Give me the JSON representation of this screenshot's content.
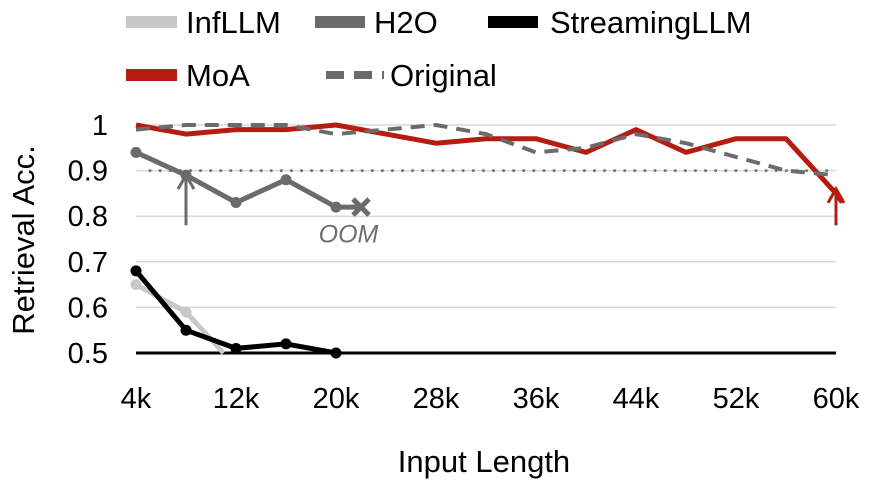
{
  "chart_data": {
    "type": "line",
    "xlabel": "Input Length",
    "ylabel": "Retrieval Acc.",
    "x_tick_labels": [
      "4k",
      "12k",
      "20k",
      "28k",
      "36k",
      "44k",
      "52k",
      "60k"
    ],
    "x_tick_values": [
      4,
      12,
      20,
      28,
      36,
      44,
      52,
      60
    ],
    "y_tick_labels": [
      "0.5",
      "0.6",
      "0.7",
      "0.8",
      "0.9",
      "1"
    ],
    "y_tick_values": [
      0.5,
      0.6,
      0.7,
      0.8,
      0.9,
      1.0
    ],
    "xlim": [
      4,
      60
    ],
    "ylim": [
      0.5,
      1.0
    ],
    "grid": "horizontal",
    "legend_position": "top",
    "reference_line": {
      "y": 0.9,
      "style": "dotted"
    },
    "series": [
      {
        "name": "InfLLM",
        "color": "#c8c8c8",
        "style": "solid",
        "markers": true,
        "x": [
          4,
          8,
          11
        ],
        "y": [
          0.65,
          0.59,
          0.5
        ]
      },
      {
        "name": "H2O",
        "color": "#6b6b6b",
        "style": "solid",
        "markers": true,
        "x": [
          4,
          8,
          12,
          16,
          20,
          22
        ],
        "y": [
          0.94,
          0.89,
          0.83,
          0.88,
          0.82,
          0.82
        ]
      },
      {
        "name": "StreamingLLM",
        "color": "#000000",
        "style": "solid",
        "markers": true,
        "x": [
          4,
          8,
          12,
          16,
          20
        ],
        "y": [
          0.68,
          0.55,
          0.51,
          0.52,
          0.5
        ]
      },
      {
        "name": "MoA",
        "color": "#b61c10",
        "style": "solid",
        "markers": false,
        "x": [
          4,
          8,
          12,
          16,
          20,
          24,
          28,
          32,
          36,
          40,
          44,
          48,
          52,
          56,
          60,
          60.5
        ],
        "y": [
          1.0,
          0.98,
          0.99,
          0.99,
          1.0,
          0.98,
          0.96,
          0.97,
          0.97,
          0.94,
          0.99,
          0.94,
          0.97,
          0.97,
          0.85,
          0.83
        ]
      },
      {
        "name": "Original",
        "color": "#6b6b6b",
        "style": "dashed",
        "markers": false,
        "x": [
          4,
          8,
          12,
          16,
          20,
          24,
          28,
          32,
          36,
          40,
          44,
          48,
          52,
          56,
          60
        ],
        "y": [
          0.99,
          1.0,
          1.0,
          1.0,
          0.98,
          0.99,
          1.0,
          0.98,
          0.94,
          0.95,
          0.98,
          0.96,
          0.93,
          0.9,
          0.89
        ]
      }
    ],
    "annotations": [
      {
        "text": "OOM",
        "x": 21,
        "y": 0.76,
        "color": "#6f6f6f"
      }
    ],
    "markers_special": [
      {
        "type": "cross",
        "x": 22,
        "y": 0.82,
        "color": "#6b6b6b"
      }
    ],
    "arrows": [
      {
        "x": 8,
        "from_y": 0.78,
        "to_y": 0.89,
        "color": "#6b6b6b"
      },
      {
        "x": 60,
        "from_y": 0.78,
        "to_y": 0.86,
        "color": "#b61c10"
      }
    ]
  }
}
